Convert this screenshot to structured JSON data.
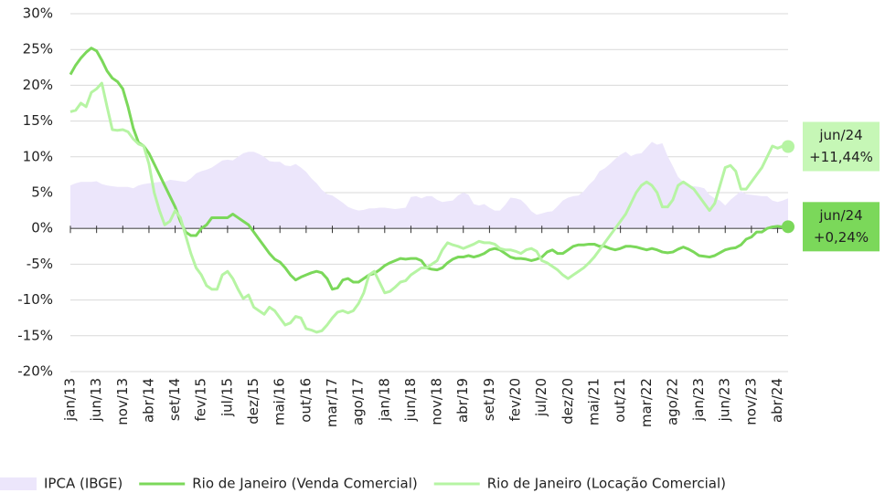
{
  "chart_data": {
    "type": "line",
    "categories": [
      "jan/13",
      null,
      null,
      null,
      null,
      "jun/13",
      null,
      null,
      null,
      null,
      "nov/13",
      null,
      null,
      null,
      null,
      "abr/14",
      null,
      null,
      null,
      null,
      "set/14",
      null,
      null,
      null,
      null,
      "fev/15",
      null,
      null,
      null,
      null,
      "jul/15",
      null,
      null,
      null,
      null,
      "dez/15",
      null,
      null,
      null,
      null,
      "mai/16",
      null,
      null,
      null,
      null,
      "out/16",
      null,
      null,
      null,
      null,
      "mar/17",
      null,
      null,
      null,
      null,
      "ago/17",
      null,
      null,
      null,
      null,
      "jan/18",
      null,
      null,
      null,
      null,
      "jun/18",
      null,
      null,
      null,
      null,
      "nov/18",
      null,
      null,
      null,
      null,
      "abr/19",
      null,
      null,
      null,
      null,
      "set/19",
      null,
      null,
      null,
      null,
      "fev/20",
      null,
      null,
      null,
      null,
      "jul/20",
      null,
      null,
      null,
      null,
      "dez/20",
      null,
      null,
      null,
      null,
      "mai/21",
      null,
      null,
      null,
      null,
      "out/21",
      null,
      null,
      null,
      null,
      "mar/22",
      null,
      null,
      null,
      null,
      "ago/22",
      null,
      null,
      null,
      null,
      "jan/23",
      null,
      null,
      null,
      null,
      "jun/23",
      null,
      null,
      null,
      null,
      "nov/23",
      null,
      null,
      null,
      null,
      "abr/24",
      null,
      null
    ],
    "series": [
      {
        "name": "IPCA (IBGE)",
        "color": "#ece6fb",
        "style": "area",
        "values": [
          6,
          6.3,
          6.5,
          6.5,
          6.5,
          6.6,
          6.2,
          6,
          5.9,
          5.8,
          5.8,
          5.8,
          5.6,
          6,
          6.2,
          6.3,
          6.4,
          6.5,
          6.5,
          6.8,
          6.7,
          6.6,
          6.5,
          7,
          7.7,
          8,
          8.2,
          8.5,
          9,
          9.5,
          9.6,
          9.5,
          10,
          10.5,
          10.7,
          10.7,
          10.4,
          10,
          9.4,
          9.3,
          9.3,
          8.8,
          8.7,
          9,
          8.5,
          7.9,
          7,
          6.3,
          5.4,
          4.8,
          4.6,
          4.1,
          3.6,
          3,
          2.7,
          2.5,
          2.6,
          2.8,
          2.8,
          2.9,
          2.9,
          2.8,
          2.7,
          2.8,
          2.9,
          4.4,
          4.5,
          4.2,
          4.5,
          4.5,
          4,
          3.7,
          3.8,
          3.9,
          4.6,
          5,
          4.7,
          3.4,
          3.2,
          3.4,
          2.9,
          2.5,
          2.5,
          3.3,
          4.3,
          4.2,
          4,
          3.3,
          2.4,
          1.9,
          2.1,
          2.3,
          2.4,
          3.1,
          3.9,
          4.3,
          4.5,
          4.6,
          5.2,
          6.1,
          6.8,
          8,
          8.4,
          9,
          9.7,
          10.3,
          10.7,
          10.1,
          10.4,
          10.5,
          11.3,
          12.1,
          11.7,
          11.9,
          10.1,
          8.7,
          7.2,
          6.5,
          6,
          5.9,
          5.8,
          5.6,
          4.7,
          4.2,
          3.9,
          3.2,
          4,
          4.6,
          5.2,
          4.8,
          4.7,
          4.6,
          4.5,
          4.5,
          3.9,
          3.7,
          3.9,
          4.2
        ]
      },
      {
        "name": "Rio de Janeiro (Venda Comercial)",
        "color": "#7bd85a",
        "style": "line",
        "values": [
          21.5,
          22.8,
          23.8,
          24.6,
          25.2,
          24.8,
          23.5,
          22,
          21,
          20.5,
          19.5,
          17,
          14,
          12,
          11.5,
          10.5,
          9,
          7.5,
          6,
          4.5,
          3,
          1,
          -0.5,
          -1,
          -1,
          0,
          0.5,
          1.5,
          1.5,
          1.5,
          1.5,
          2,
          1.5,
          1,
          0.5,
          -0.5,
          -1.5,
          -2.5,
          -3.5,
          -4.3,
          -4.7,
          -5.5,
          -6.5,
          -7.2,
          -6.8,
          -6.5,
          -6.2,
          -6,
          -6.2,
          -7,
          -8.5,
          -8.3,
          -7.2,
          -7,
          -7.5,
          -7.5,
          -7,
          -6.5,
          -6.3,
          -5.8,
          -5.2,
          -4.8,
          -4.5,
          -4.2,
          -4.3,
          -4.2,
          -4.2,
          -4.5,
          -5.5,
          -5.7,
          -5.8,
          -5.5,
          -4.8,
          -4.3,
          -4,
          -4,
          -3.8,
          -4,
          -3.8,
          -3.5,
          -3,
          -2.8,
          -3,
          -3.5,
          -4,
          -4.2,
          -4.2,
          -4.3,
          -4.5,
          -4.3,
          -4,
          -3.3,
          -3,
          -3.5,
          -3.5,
          -3,
          -2.5,
          -2.3,
          -2.3,
          -2.2,
          -2.2,
          -2.5,
          -2.5,
          -2.8,
          -3,
          -2.8,
          -2.5,
          -2.5,
          -2.6,
          -2.8,
          -3,
          -2.8,
          -3,
          -3.3,
          -3.4,
          -3.3,
          -2.9,
          -2.6,
          -2.9,
          -3.3,
          -3.8,
          -3.9,
          -4,
          -3.8,
          -3.4,
          -3,
          -2.8,
          -2.7,
          -2.3,
          -1.5,
          -1.2,
          -0.5,
          -0.5,
          0,
          0.2,
          0.3,
          0.2,
          0.24
        ]
      },
      {
        "name": "Rio de Janeiro (Locação Comercial)",
        "color": "#b6f4a3",
        "style": "line",
        "values": [
          16.3,
          16.5,
          17.5,
          17,
          19,
          19.5,
          20.3,
          17,
          13.8,
          13.7,
          13.8,
          13.5,
          12.5,
          11.8,
          11.5,
          9,
          5,
          2.5,
          0.5,
          1,
          2.5,
          1.5,
          -1,
          -3.5,
          -5.5,
          -6.5,
          -8,
          -8.5,
          -8.5,
          -6.5,
          -6,
          -7,
          -8.5,
          -9.8,
          -9.3,
          -11,
          -11.5,
          -12,
          -11,
          -11.5,
          -12.5,
          -13.5,
          -13.2,
          -12.3,
          -12.5,
          -14,
          -14.2,
          -14.5,
          -14.3,
          -13.5,
          -12.5,
          -11.7,
          -11.5,
          -11.8,
          -11.5,
          -10.5,
          -9,
          -6.5,
          -6,
          -7.5,
          -9,
          -8.8,
          -8.2,
          -7.5,
          -7.3,
          -6.5,
          -6,
          -5.5,
          -5.5,
          -5,
          -4.5,
          -3,
          -2,
          -2.3,
          -2.5,
          -2.8,
          -2.5,
          -2.2,
          -1.8,
          -2,
          -2,
          -2.2,
          -2.8,
          -3,
          -3,
          -3.2,
          -3.5,
          -3,
          -2.8,
          -3.2,
          -4.5,
          -4.8,
          -5.3,
          -5.8,
          -6.5,
          -7,
          -6.5,
          -6,
          -5.5,
          -4.8,
          -4,
          -3,
          -2,
          -1,
          0,
          1,
          2,
          3.5,
          5,
          6,
          6.5,
          6,
          5,
          3,
          3,
          4,
          6,
          6.5,
          6,
          5.5,
          4.5,
          3.5,
          2.5,
          3.5,
          6,
          8.5,
          8.8,
          8,
          5.5,
          5.5,
          6.5,
          7.5,
          8.5,
          10,
          11.5,
          11.2,
          11.5,
          11.44
        ]
      }
    ],
    "end_labels": [
      {
        "series": 2,
        "lines": [
          "jun/24",
          "+11,44%"
        ],
        "color": "#c6f7b6"
      },
      {
        "series": 1,
        "lines": [
          "jun/24",
          "+0,24%"
        ],
        "color": "#7bd85a"
      }
    ],
    "ylim": [
      -20,
      30
    ],
    "yticks": [
      {
        "value": -20,
        "label": "-20%"
      },
      {
        "value": -15,
        "label": "-15%"
      },
      {
        "value": -10,
        "label": "-10%"
      },
      {
        "value": -5,
        "label": "-5%"
      },
      {
        "value": 0,
        "label": "0%"
      },
      {
        "value": 5,
        "label": "5%"
      },
      {
        "value": 10,
        "label": "10%"
      },
      {
        "value": 15,
        "label": "15%"
      },
      {
        "value": 20,
        "label": "20%"
      },
      {
        "value": 25,
        "label": "25%"
      },
      {
        "value": 30,
        "label": "30%"
      }
    ],
    "grid": true,
    "legend": "bottom"
  }
}
